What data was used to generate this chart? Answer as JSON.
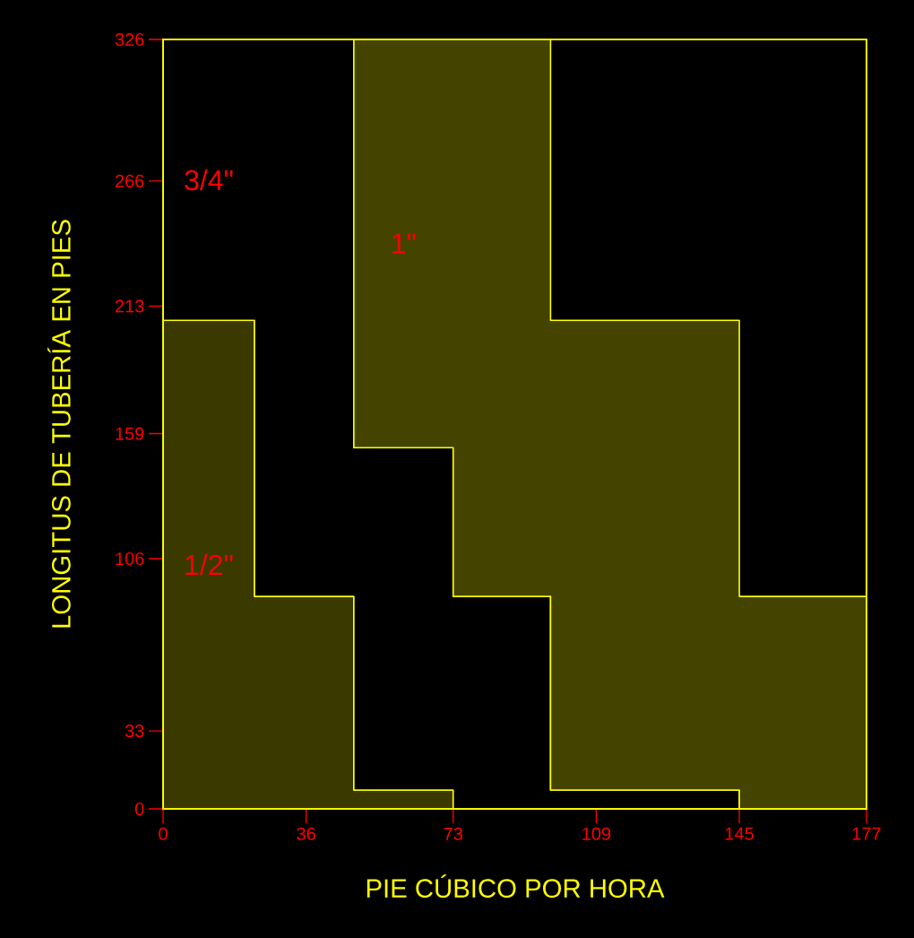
{
  "chart_data": {
    "type": "area",
    "stacked": true,
    "xlabel": "PIE CÚBICO POR HORA",
    "ylabel": "LONGITUS DE TUBERÍA EN PIES",
    "x": [
      0,
      23,
      23,
      48,
      48,
      73,
      73,
      97.5,
      97.5,
      145,
      145,
      177
    ],
    "series": [
      {
        "name": "1/2\"",
        "color": "#3a3a00",
        "values": [
          207,
          207,
          90,
          90,
          8,
          8,
          0,
          0,
          0,
          0,
          0,
          0
        ]
      },
      {
        "name": "3/4\"",
        "color": "#000000",
        "values": [
          119,
          119,
          236,
          236,
          145,
          145,
          90,
          90,
          8,
          8,
          0,
          0
        ]
      },
      {
        "name": "1\"",
        "color": "#444400",
        "values": [
          null,
          null,
          null,
          null,
          173,
          173,
          236,
          236,
          199,
          199,
          90,
          90
        ]
      }
    ],
    "xlim": [
      0,
      177
    ],
    "ylim": [
      0,
      326
    ],
    "xticks": [
      0,
      36,
      73,
      109,
      145,
      177
    ],
    "yticks": [
      0,
      33,
      106,
      159,
      213,
      266,
      326
    ],
    "grid": false
  }
}
